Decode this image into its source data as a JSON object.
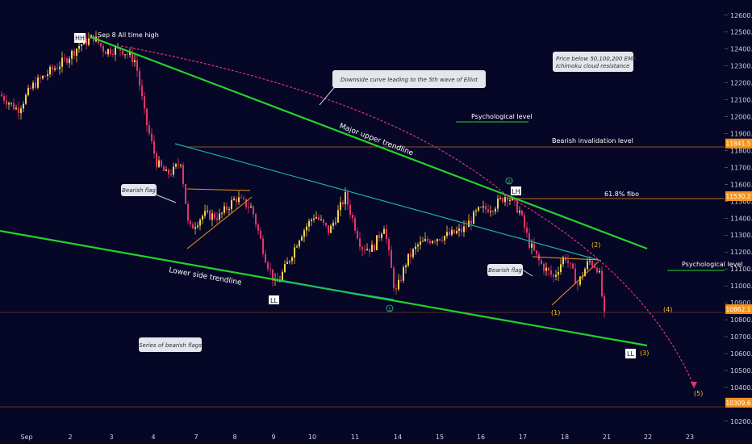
{
  "chart_data": {
    "type": "candlestick",
    "x_tick_labels": [
      "Sep",
      "2",
      "3",
      "4",
      "7",
      "8",
      "9",
      "10",
      "11",
      "14",
      "15",
      "16",
      "17",
      "18",
      "21",
      "22",
      "23"
    ],
    "y_ticks": [
      12600,
      12500,
      12400,
      12300,
      12200,
      12100,
      12000,
      11900,
      11800,
      11700,
      11600,
      11500,
      11400,
      11300,
      11200,
      11100,
      11000,
      10900,
      10800,
      10700,
      10600,
      10500,
      10400,
      10300,
      10200
    ],
    "ylim": [
      10180,
      12680
    ],
    "price_badges": [
      {
        "label": "11841.5",
        "value": 11841.5
      },
      {
        "label": "11530.2",
        "value": 11530.2
      },
      {
        "label": "10862.1",
        "value": 10862.1
      },
      {
        "label": "10309.6",
        "value": 10309.6
      }
    ],
    "colors": {
      "up": "#f0d44c",
      "down": "#e5336b",
      "trend": "#22d42a",
      "fib": "#f7931a",
      "teal": "#19b3a3",
      "projection": "#e5336b"
    },
    "annotations": {
      "hh": "HH",
      "ath": "Sep 8 All time high",
      "downside_curve": "Downside curve leading to the 5th wave of Elliot",
      "ema": "Price below 50,100,200 EMA",
      "ichimoku": "Ichimoku cloud resistance",
      "psych_top": "Psychological level",
      "psych_right": "Psychological level",
      "bearish_invalidation": "Bearish invalidation level",
      "major_upper": "Major upper trendline",
      "fibo": "61.8% fibo",
      "lh": "LH",
      "ll_1": "LL",
      "ll_2": "LL",
      "bearish_flag_1": "Bearish flag",
      "bearish_flag_2": "Bearish flag",
      "lower_side": "Lower side trendline",
      "series_flags": "Series of bearish flags",
      "circle_1": "1",
      "circle_2": "2",
      "wave_1": "(1)",
      "wave_2": "(2)",
      "wave_3": "(3)",
      "wave_4": "(4)",
      "wave_5": "(5)"
    }
  }
}
